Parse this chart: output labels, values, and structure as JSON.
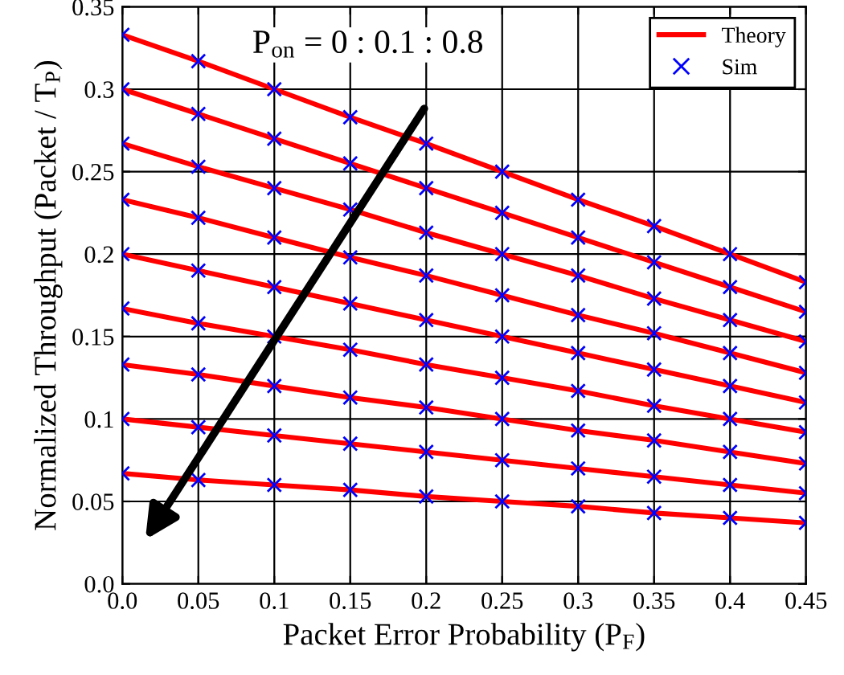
{
  "chart_data": {
    "type": "line",
    "xlabel": "Packet Error Probability (P$_{F}$)",
    "ylabel": "Normalized Throughput (Packet / T$_{P}$)",
    "x": [
      0,
      0.05,
      0.1,
      0.15,
      0.2,
      0.25,
      0.3,
      0.35,
      0.4,
      0.45
    ],
    "xlim": [
      0,
      0.45
    ],
    "ylim": [
      0,
      0.35
    ],
    "xticks": [
      {
        "value": 0,
        "label": "0.0"
      },
      0.05,
      0.1,
      0.15,
      0.2,
      0.25,
      0.3,
      0.35,
      0.4,
      0.45
    ],
    "yticks": [
      {
        "value": 0,
        "label": "0.0"
      },
      0.05,
      0.1,
      0.15,
      0.2,
      0.25,
      0.3,
      0.35
    ],
    "grid": true,
    "legend": "top right",
    "annotations": [
      "P$_{on}$ = 0 : 0.1 : 0.8"
    ],
    "series": [
      {
        "name": "Theory",
        "color": "#ff0000",
        "line_style": "solid",
        "values": [
          0.333,
          0.317,
          0.3,
          0.283,
          0.267,
          0.25,
          0.233,
          0.217,
          0.2,
          0.183
        ]
      },
      {
        "color": "#ff0000",
        "line_style": "solid",
        "values": [
          0.3,
          0.285,
          0.27,
          0.255,
          0.24,
          0.225,
          0.21,
          0.195,
          0.18,
          0.165
        ]
      },
      {
        "color": "#ff0000",
        "line_style": "solid",
        "values": [
          0.267,
          0.253,
          0.24,
          0.227,
          0.213,
          0.2,
          0.187,
          0.173,
          0.16,
          0.147
        ]
      },
      {
        "color": "#ff0000",
        "line_style": "solid",
        "values": [
          0.233,
          0.222,
          0.21,
          0.198,
          0.187,
          0.175,
          0.163,
          0.152,
          0.14,
          0.128
        ]
      },
      {
        "color": "#ff0000",
        "line_style": "solid",
        "values": [
          0.2,
          0.19,
          0.18,
          0.17,
          0.16,
          0.15,
          0.14,
          0.13,
          0.12,
          0.11
        ]
      },
      {
        "color": "#ff0000",
        "line_style": "solid",
        "values": [
          0.167,
          0.158,
          0.15,
          0.142,
          0.133,
          0.125,
          0.117,
          0.108,
          0.1,
          0.092
        ]
      },
      {
        "color": "#ff0000",
        "line_style": "solid",
        "values": [
          0.133,
          0.127,
          0.12,
          0.113,
          0.107,
          0.1,
          0.093,
          0.087,
          0.08,
          0.073
        ]
      },
      {
        "color": "#ff0000",
        "line_style": "solid",
        "values": [
          0.1,
          0.095,
          0.09,
          0.085,
          0.08,
          0.075,
          0.07,
          0.065,
          0.06,
          0.055
        ]
      },
      {
        "color": "#ff0000",
        "line_style": "solid",
        "values": [
          0.067,
          0.063,
          0.06,
          0.057,
          0.053,
          0.05,
          0.047,
          0.043,
          0.04,
          0.037
        ]
      },
      {
        "name": "Sim",
        "type": "scatter",
        "color": "#0000ff",
        "marker": "cross",
        "values": [
          0.333,
          0.317,
          0.3,
          0.283,
          0.267,
          0.25,
          0.233,
          0.217,
          0.2,
          0.183
        ]
      },
      {
        "type": "scatter",
        "color": "#0000ff",
        "marker": "cross",
        "values": [
          0.3,
          0.285,
          0.27,
          0.255,
          0.24,
          0.225,
          0.21,
          0.195,
          0.18,
          0.165
        ]
      },
      {
        "type": "scatter",
        "color": "#0000ff",
        "marker": "cross",
        "values": [
          0.267,
          0.253,
          0.24,
          0.227,
          0.213,
          0.2,
          0.187,
          0.173,
          0.16,
          0.147
        ]
      },
      {
        "type": "scatter",
        "color": "#0000ff",
        "marker": "cross",
        "values": [
          0.233,
          0.222,
          0.21,
          0.198,
          0.187,
          0.175,
          0.163,
          0.152,
          0.14,
          0.128
        ]
      },
      {
        "type": "scatter",
        "color": "#0000ff",
        "marker": "cross",
        "values": [
          0.2,
          0.19,
          0.18,
          0.17,
          0.16,
          0.15,
          0.14,
          0.13,
          0.12,
          0.11
        ]
      },
      {
        "type": "scatter",
        "color": "#0000ff",
        "marker": "cross",
        "values": [
          0.167,
          0.158,
          0.15,
          0.142,
          0.133,
          0.125,
          0.117,
          0.108,
          0.1,
          0.092
        ]
      },
      {
        "type": "scatter",
        "color": "#0000ff",
        "marker": "cross",
        "values": [
          0.133,
          0.127,
          0.12,
          0.113,
          0.107,
          0.1,
          0.093,
          0.087,
          0.08,
          0.073
        ]
      },
      {
        "type": "scatter",
        "color": "#0000ff",
        "marker": "cross",
        "values": [
          0.1,
          0.095,
          0.09,
          0.085,
          0.08,
          0.075,
          0.07,
          0.065,
          0.06,
          0.055
        ]
      },
      {
        "type": "scatter",
        "color": "#0000ff",
        "marker": "cross",
        "values": [
          0.067,
          0.063,
          0.06,
          0.057,
          0.053,
          0.05,
          0.047,
          0.043,
          0.04,
          0.037
        ]
      }
    ]
  }
}
